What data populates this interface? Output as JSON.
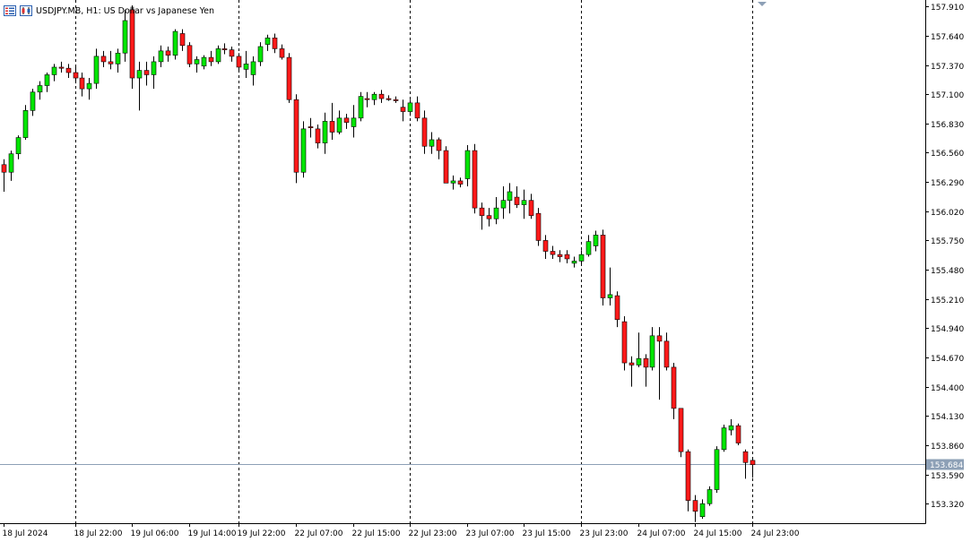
{
  "title": "USDJPY.MB, H1:  US Dollar vs Japanese Yen",
  "toolbar_icons": [
    "chart-grid-icon",
    "chart-candles-icon"
  ],
  "colors": {
    "bull": "#00e600",
    "bear": "#ff1a1a",
    "wick": "#000000",
    "axis": "#000000",
    "price_line": "#8da0b6",
    "price_label_bg": "#8da0b6"
  },
  "current_price_label": "153.684",
  "chart_data": {
    "type": "candlestick",
    "symbol": "USDJPY.MB",
    "timeframe": "H1",
    "ylim": [
      153.14,
      157.97
    ],
    "y_ticks": [
      "157.910",
      "157.640",
      "157.370",
      "157.100",
      "156.830",
      "156.560",
      "156.290",
      "156.020",
      "155.750",
      "155.480",
      "155.210",
      "154.940",
      "154.670",
      "154.400",
      "154.130",
      "153.860",
      "153.590",
      "153.320"
    ],
    "x_ticks": [
      "18 Jul 2024",
      "18 Jul 22:00",
      "19 Jul 06:00",
      "19 Jul 14:00",
      "19 Jul 22:00",
      "22 Jul 07:00",
      "22 Jul 15:00",
      "22 Jul 23:00",
      "23 Jul 07:00",
      "23 Jul 15:00",
      "23 Jul 23:00",
      "24 Jul 07:00",
      "24 Jul 15:00",
      "24 Jul 23:00"
    ],
    "period_separators": [
      "18 Jul 22:00",
      "19 Jul 22:00",
      "22 Jul 23:00",
      "23 Jul 23:00",
      "24 Jul 23:00"
    ],
    "current_price": 153.684,
    "grid": false,
    "candles": [
      {
        "o": 156.45,
        "h": 156.5,
        "l": 156.2,
        "c": 156.38
      },
      {
        "o": 156.38,
        "h": 156.58,
        "l": 156.3,
        "c": 156.55
      },
      {
        "o": 156.55,
        "h": 156.72,
        "l": 156.5,
        "c": 156.7
      },
      {
        "o": 156.7,
        "h": 157.0,
        "l": 156.68,
        "c": 156.95
      },
      {
        "o": 156.95,
        "h": 157.15,
        "l": 156.9,
        "c": 157.12
      },
      {
        "o": 157.12,
        "h": 157.22,
        "l": 157.05,
        "c": 157.18
      },
      {
        "o": 157.18,
        "h": 157.3,
        "l": 157.12,
        "c": 157.28
      },
      {
        "o": 157.28,
        "h": 157.38,
        "l": 157.22,
        "c": 157.35
      },
      {
        "o": 157.35,
        "h": 157.4,
        "l": 157.3,
        "c": 157.34
      },
      {
        "o": 157.34,
        "h": 157.38,
        "l": 157.25,
        "c": 157.3
      },
      {
        "o": 157.3,
        "h": 157.35,
        "l": 157.2,
        "c": 157.25
      },
      {
        "o": 157.25,
        "h": 157.3,
        "l": 157.08,
        "c": 157.15
      },
      {
        "o": 157.15,
        "h": 157.25,
        "l": 157.05,
        "c": 157.2
      },
      {
        "o": 157.2,
        "h": 157.52,
        "l": 157.15,
        "c": 157.45
      },
      {
        "o": 157.45,
        "h": 157.5,
        "l": 157.35,
        "c": 157.4
      },
      {
        "o": 157.4,
        "h": 157.5,
        "l": 157.33,
        "c": 157.38
      },
      {
        "o": 157.38,
        "h": 157.52,
        "l": 157.3,
        "c": 157.48
      },
      {
        "o": 157.48,
        "h": 157.88,
        "l": 157.4,
        "c": 157.78
      },
      {
        "o": 157.88,
        "h": 157.92,
        "l": 157.15,
        "c": 157.25
      },
      {
        "o": 157.25,
        "h": 157.4,
        "l": 156.95,
        "c": 157.32
      },
      {
        "o": 157.32,
        "h": 157.4,
        "l": 157.18,
        "c": 157.28
      },
      {
        "o": 157.28,
        "h": 157.45,
        "l": 157.15,
        "c": 157.4
      },
      {
        "o": 157.4,
        "h": 157.55,
        "l": 157.35,
        "c": 157.5
      },
      {
        "o": 157.5,
        "h": 157.54,
        "l": 157.4,
        "c": 157.46
      },
      {
        "o": 157.46,
        "h": 157.7,
        "l": 157.42,
        "c": 157.68
      },
      {
        "o": 157.66,
        "h": 157.7,
        "l": 157.5,
        "c": 157.55
      },
      {
        "o": 157.55,
        "h": 157.58,
        "l": 157.35,
        "c": 157.38
      },
      {
        "o": 157.38,
        "h": 157.45,
        "l": 157.3,
        "c": 157.42
      },
      {
        "o": 157.36,
        "h": 157.46,
        "l": 157.33,
        "c": 157.44
      },
      {
        "o": 157.44,
        "h": 157.5,
        "l": 157.36,
        "c": 157.4
      },
      {
        "o": 157.4,
        "h": 157.55,
        "l": 157.38,
        "c": 157.52
      },
      {
        "o": 157.52,
        "h": 157.57,
        "l": 157.47,
        "c": 157.51
      },
      {
        "o": 157.51,
        "h": 157.54,
        "l": 157.4,
        "c": 157.45
      },
      {
        "o": 157.45,
        "h": 157.48,
        "l": 157.32,
        "c": 157.35
      },
      {
        "o": 157.33,
        "h": 157.5,
        "l": 157.25,
        "c": 157.38
      },
      {
        "o": 157.28,
        "h": 157.45,
        "l": 157.18,
        "c": 157.4
      },
      {
        "o": 157.4,
        "h": 157.58,
        "l": 157.36,
        "c": 157.54
      },
      {
        "o": 157.56,
        "h": 157.65,
        "l": 157.5,
        "c": 157.62
      },
      {
        "o": 157.62,
        "h": 157.66,
        "l": 157.48,
        "c": 157.52
      },
      {
        "o": 157.52,
        "h": 157.56,
        "l": 157.42,
        "c": 157.44
      },
      {
        "o": 157.44,
        "h": 157.48,
        "l": 157.02,
        "c": 157.05
      },
      {
        "o": 157.05,
        "h": 157.1,
        "l": 156.28,
        "c": 156.38
      },
      {
        "o": 156.38,
        "h": 156.85,
        "l": 156.33,
        "c": 156.78
      },
      {
        "o": 156.8,
        "h": 156.88,
        "l": 156.7,
        "c": 156.79
      },
      {
        "o": 156.78,
        "h": 156.82,
        "l": 156.6,
        "c": 156.65
      },
      {
        "o": 156.65,
        "h": 156.93,
        "l": 156.55,
        "c": 156.85
      },
      {
        "o": 156.85,
        "h": 157.02,
        "l": 156.68,
        "c": 156.75
      },
      {
        "o": 156.75,
        "h": 156.95,
        "l": 156.73,
        "c": 156.88
      },
      {
        "o": 156.88,
        "h": 156.92,
        "l": 156.78,
        "c": 156.84
      },
      {
        "o": 156.8,
        "h": 157.0,
        "l": 156.7,
        "c": 156.88
      },
      {
        "o": 156.88,
        "h": 157.12,
        "l": 156.85,
        "c": 157.08
      },
      {
        "o": 157.06,
        "h": 157.12,
        "l": 156.98,
        "c": 157.05
      },
      {
        "o": 157.05,
        "h": 157.12,
        "l": 157.0,
        "c": 157.1
      },
      {
        "o": 157.1,
        "h": 157.14,
        "l": 157.02,
        "c": 157.06
      },
      {
        "o": 157.06,
        "h": 157.09,
        "l": 157.04,
        "c": 157.05
      },
      {
        "o": 157.05,
        "h": 157.08,
        "l": 157.02,
        "c": 157.04
      },
      {
        "o": 156.98,
        "h": 157.05,
        "l": 156.85,
        "c": 156.94
      },
      {
        "o": 156.94,
        "h": 157.05,
        "l": 156.9,
        "c": 157.02
      },
      {
        "o": 157.02,
        "h": 157.08,
        "l": 156.85,
        "c": 156.88
      },
      {
        "o": 156.88,
        "h": 156.95,
        "l": 156.55,
        "c": 156.62
      },
      {
        "o": 156.62,
        "h": 156.75,
        "l": 156.55,
        "c": 156.68
      },
      {
        "o": 156.68,
        "h": 156.7,
        "l": 156.5,
        "c": 156.58
      },
      {
        "o": 156.58,
        "h": 156.62,
        "l": 156.32,
        "c": 156.28
      },
      {
        "o": 156.28,
        "h": 156.35,
        "l": 156.22,
        "c": 156.3
      },
      {
        "o": 156.3,
        "h": 156.33,
        "l": 156.24,
        "c": 156.27
      },
      {
        "o": 156.32,
        "h": 156.63,
        "l": 156.25,
        "c": 156.58
      },
      {
        "o": 156.58,
        "h": 156.64,
        "l": 156.0,
        "c": 156.05
      },
      {
        "o": 156.05,
        "h": 156.1,
        "l": 155.85,
        "c": 155.98
      },
      {
        "o": 155.98,
        "h": 156.05,
        "l": 155.88,
        "c": 155.95
      },
      {
        "o": 155.95,
        "h": 156.15,
        "l": 155.9,
        "c": 156.05
      },
      {
        "o": 156.05,
        "h": 156.25,
        "l": 155.95,
        "c": 156.12
      },
      {
        "o": 156.12,
        "h": 156.28,
        "l": 156.0,
        "c": 156.2
      },
      {
        "o": 156.15,
        "h": 156.25,
        "l": 156.05,
        "c": 156.08
      },
      {
        "o": 156.08,
        "h": 156.22,
        "l": 155.95,
        "c": 156.12
      },
      {
        "o": 156.12,
        "h": 156.18,
        "l": 155.95,
        "c": 155.98
      },
      {
        "o": 156.0,
        "h": 156.05,
        "l": 155.7,
        "c": 155.75
      },
      {
        "o": 155.75,
        "h": 155.8,
        "l": 155.58,
        "c": 155.65
      },
      {
        "o": 155.65,
        "h": 155.7,
        "l": 155.58,
        "c": 155.62
      },
      {
        "o": 155.62,
        "h": 155.66,
        "l": 155.55,
        "c": 155.6
      },
      {
        "o": 155.62,
        "h": 155.66,
        "l": 155.54,
        "c": 155.58
      },
      {
        "o": 155.54,
        "h": 155.6,
        "l": 155.5,
        "c": 155.56
      },
      {
        "o": 155.56,
        "h": 155.66,
        "l": 155.52,
        "c": 155.62
      },
      {
        "o": 155.62,
        "h": 155.8,
        "l": 155.6,
        "c": 155.74
      },
      {
        "o": 155.7,
        "h": 155.84,
        "l": 155.65,
        "c": 155.8
      },
      {
        "o": 155.8,
        "h": 155.85,
        "l": 155.15,
        "c": 155.22
      },
      {
        "o": 155.22,
        "h": 155.5,
        "l": 155.15,
        "c": 155.25
      },
      {
        "o": 155.24,
        "h": 155.28,
        "l": 154.95,
        "c": 155.02
      },
      {
        "o": 155.0,
        "h": 155.05,
        "l": 154.55,
        "c": 154.62
      },
      {
        "o": 154.62,
        "h": 154.68,
        "l": 154.4,
        "c": 154.6
      },
      {
        "o": 154.6,
        "h": 154.9,
        "l": 154.58,
        "c": 154.66
      },
      {
        "o": 154.66,
        "h": 154.7,
        "l": 154.4,
        "c": 154.58
      },
      {
        "o": 154.58,
        "h": 154.95,
        "l": 154.55,
        "c": 154.87
      },
      {
        "o": 154.87,
        "h": 154.95,
        "l": 154.28,
        "c": 154.82
      },
      {
        "o": 154.82,
        "h": 154.9,
        "l": 154.55,
        "c": 154.58
      },
      {
        "o": 154.58,
        "h": 154.62,
        "l": 154.1,
        "c": 154.2
      },
      {
        "o": 154.2,
        "h": 154.2,
        "l": 153.75,
        "c": 153.8
      },
      {
        "o": 153.8,
        "h": 153.82,
        "l": 153.25,
        "c": 153.35
      },
      {
        "o": 153.35,
        "h": 153.4,
        "l": 153.15,
        "c": 153.25
      },
      {
        "o": 153.2,
        "h": 153.36,
        "l": 153.18,
        "c": 153.32
      },
      {
        "o": 153.32,
        "h": 153.48,
        "l": 153.3,
        "c": 153.45
      },
      {
        "o": 153.45,
        "h": 153.85,
        "l": 153.42,
        "c": 153.82
      },
      {
        "o": 153.82,
        "h": 154.05,
        "l": 153.8,
        "c": 154.02
      },
      {
        "o": 154.0,
        "h": 154.1,
        "l": 153.95,
        "c": 154.04
      },
      {
        "o": 154.04,
        "h": 154.06,
        "l": 153.86,
        "c": 153.88
      },
      {
        "o": 153.8,
        "h": 153.82,
        "l": 153.55,
        "c": 153.7
      },
      {
        "o": 153.72,
        "h": 153.74,
        "l": 153.56,
        "c": 153.68
      }
    ]
  }
}
